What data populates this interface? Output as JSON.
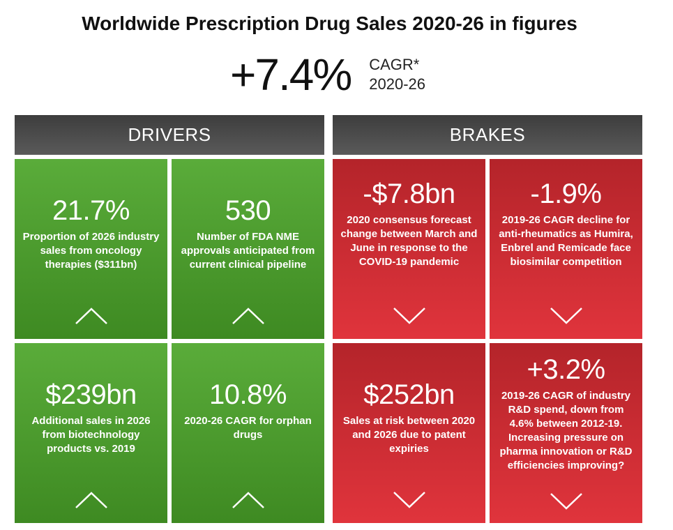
{
  "title": "Worldwide Prescription Drug Sales 2020-26 in figures",
  "cagr": {
    "value": "+7.4%",
    "label_line1": "CAGR*",
    "label_line2": "2020-26"
  },
  "headers": {
    "drivers": "DRIVERS",
    "brakes": "BRAKES"
  },
  "colors": {
    "drivers_green": "#4f9e30",
    "brakes_red": "#d0303a",
    "header_gray": "#4a4a4a"
  },
  "tiles": {
    "d1": {
      "value": "21.7%",
      "desc": "Proportion of 2026 industry sales from oncology therapies ($311bn)",
      "icon": "chevron-up-icon"
    },
    "d2": {
      "value": "530",
      "desc": "Number of FDA NME approvals anticipated from current clinical pipeline",
      "icon": "chevron-up-icon"
    },
    "d3": {
      "value": "$239bn",
      "desc": "Additional sales in 2026 from biotechnology products vs. 2019",
      "icon": "chevron-up-icon"
    },
    "d4": {
      "value": "10.8%",
      "desc": "2020-26 CAGR for orphan drugs",
      "icon": "chevron-up-icon"
    },
    "b1": {
      "value": "-$7.8bn",
      "desc": "2020 consensus forecast change between March and June in response to the COVID-19 pandemic",
      "icon": "chevron-down-icon"
    },
    "b2": {
      "value": "-1.9%",
      "desc": "2019-26 CAGR decline for anti-rheumatics as Humira, Enbrel and Remicade face biosimilar competition",
      "icon": "chevron-down-icon"
    },
    "b3": {
      "value": "$252bn",
      "desc": "Sales at risk between 2020 and 2026 due to patent expiries",
      "icon": "chevron-down-icon"
    },
    "b4": {
      "value": "+3.2%",
      "desc": "2019-26 CAGR of industry R&D spend, down from 4.6% between 2012-19. Increasing pressure on pharma innovation or R&D efficiencies improving?",
      "icon": "chevron-down-icon"
    }
  }
}
